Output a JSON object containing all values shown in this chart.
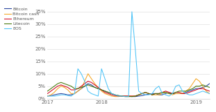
{
  "series": {
    "Bitcoin": {
      "color": "#1f3d99",
      "data_x": [
        0,
        1,
        2,
        3,
        4,
        5,
        6,
        7,
        8,
        9,
        10,
        11,
        12,
        13,
        14,
        15,
        16,
        17,
        18,
        19,
        20,
        21,
        22,
        23,
        24,
        25,
        26,
        27,
        28,
        29,
        30,
        31,
        32,
        33,
        34,
        35,
        36,
        37,
        38,
        39,
        40,
        41,
        42,
        43,
        44,
        45,
        46,
        47,
        48
      ],
      "data_y": [
        1,
        1.2,
        1.5,
        1.8,
        2,
        1.8,
        1.5,
        1.5,
        2,
        3,
        4,
        5,
        6,
        5.5,
        4.5,
        4,
        3.5,
        3,
        2.5,
        2,
        1.5,
        1.2,
        1,
        1,
        1,
        0.8,
        0.8,
        1,
        1.2,
        1.5,
        1.8,
        2,
        2,
        1.5,
        1.5,
        2,
        2.5,
        2,
        2,
        2,
        2,
        2.5,
        3,
        3.5,
        4,
        4,
        4.5,
        5,
        6
      ]
    },
    "Bitcoin cash": {
      "color": "#f5a623",
      "data_x": [
        0,
        1,
        2,
        3,
        4,
        5,
        6,
        7,
        8,
        9,
        10,
        11,
        12,
        13,
        14,
        15,
        16,
        17,
        18,
        19,
        20,
        21,
        22,
        23,
        24,
        25,
        26,
        27,
        28,
        29,
        30,
        31,
        32,
        33,
        34,
        35,
        36,
        37,
        38,
        39,
        40,
        41,
        42,
        43,
        44,
        45,
        46,
        47,
        48
      ],
      "data_y": [
        1,
        1.5,
        2.5,
        4,
        5,
        4.5,
        3.5,
        2,
        2,
        3,
        4,
        7,
        10,
        8,
        6,
        4.5,
        3,
        2,
        1.5,
        1,
        0.8,
        0.8,
        1,
        1,
        1,
        1,
        1,
        1.5,
        2,
        2.5,
        2,
        1.5,
        1.5,
        1.5,
        2,
        2.5,
        2,
        1.5,
        2,
        2,
        2,
        3,
        4,
        6,
        8,
        7,
        5,
        3,
        2
      ]
    },
    "Ethereum": {
      "color": "#d0021b",
      "data_x": [
        0,
        1,
        2,
        3,
        4,
        5,
        6,
        7,
        8,
        9,
        10,
        11,
        12,
        13,
        14,
        15,
        16,
        17,
        18,
        19,
        20,
        21,
        22,
        23,
        24,
        25,
        26,
        27,
        28,
        29,
        30,
        31,
        32,
        33,
        34,
        35,
        36,
        37,
        38,
        39,
        40,
        41,
        42,
        43,
        44,
        45,
        46,
        47,
        48
      ],
      "data_y": [
        2,
        3,
        4,
        5,
        5.5,
        5,
        4.5,
        3.5,
        3.5,
        4,
        5,
        6,
        7,
        6.5,
        5.5,
        4.5,
        3.5,
        2.5,
        2,
        1.5,
        1.2,
        1,
        1,
        1,
        1,
        1,
        1,
        1.5,
        2,
        2.5,
        2,
        1.5,
        2,
        2,
        2.5,
        3,
        2.5,
        2,
        2.5,
        2.5,
        2,
        2,
        2.5,
        3,
        3.5,
        4,
        4,
        3.5,
        3
      ]
    },
    "Litecoin": {
      "color": "#417505",
      "data_x": [
        0,
        1,
        2,
        3,
        4,
        5,
        6,
        7,
        8,
        9,
        10,
        11,
        12,
        13,
        14,
        15,
        16,
        17,
        18,
        19,
        20,
        21,
        22,
        23,
        24,
        25,
        26,
        27,
        28,
        29,
        30,
        31,
        32,
        33,
        34,
        35,
        36,
        37,
        38,
        39,
        40,
        41,
        42,
        43,
        44,
        45,
        46,
        47,
        48
      ],
      "data_y": [
        3,
        4,
        5,
        6,
        6.5,
        6,
        5.5,
        5,
        4,
        4,
        4.5,
        5,
        5.5,
        5,
        4.5,
        4,
        3.5,
        3,
        2.5,
        2,
        1.5,
        1.2,
        1,
        0.8,
        0.8,
        0.8,
        1,
        1.5,
        2,
        2.5,
        2,
        1.5,
        2,
        2,
        2.5,
        2.5,
        2,
        2,
        2.5,
        3,
        3,
        3,
        3.5,
        4,
        5,
        5,
        5.5,
        5,
        4.5
      ]
    },
    "EOS": {
      "color": "#4dc3f7",
      "data_x": [
        0,
        1,
        2,
        3,
        4,
        5,
        6,
        7,
        8,
        9,
        10,
        11,
        12,
        13,
        14,
        15,
        16,
        17,
        18,
        19,
        20,
        21,
        22,
        23,
        24,
        25,
        26,
        27,
        28,
        29,
        30,
        31,
        32,
        33,
        34,
        35,
        36,
        37,
        38,
        39,
        40,
        41,
        42,
        43,
        44,
        45,
        46,
        47,
        48
      ],
      "data_y": [
        1,
        1,
        1,
        1.2,
        1.5,
        1.5,
        1.2,
        1,
        2,
        12,
        10,
        7,
        3,
        2,
        1.5,
        1,
        12,
        8,
        4,
        2,
        1.5,
        1,
        1,
        0.8,
        0.8,
        35,
        20,
        3,
        2,
        1.5,
        1.5,
        2,
        4,
        5,
        2,
        1.5,
        1,
        2,
        5,
        5.5,
        3,
        2,
        1.5,
        1.5,
        2,
        2.5,
        3,
        2.5,
        2
      ]
    }
  },
  "xtick_positions": [
    0,
    16,
    32,
    44
  ],
  "xticklabels": [
    "2017",
    "2018",
    "",
    "2019"
  ],
  "ytick_positions": [
    0,
    5,
    10,
    15,
    20,
    25,
    30,
    35
  ],
  "yticklabels": [
    "0%",
    "5%",
    "10%",
    "15%",
    "20%",
    "25%",
    "30%",
    "35%"
  ],
  "ylim": [
    0,
    37
  ],
  "xlim": [
    0,
    48
  ],
  "legend_order": [
    "Bitcoin",
    "Bitcoin cash",
    "Ethereum",
    "Litecoin",
    "EOS"
  ],
  "bg_color": "#ffffff",
  "grid_color": "#e0e0e0"
}
